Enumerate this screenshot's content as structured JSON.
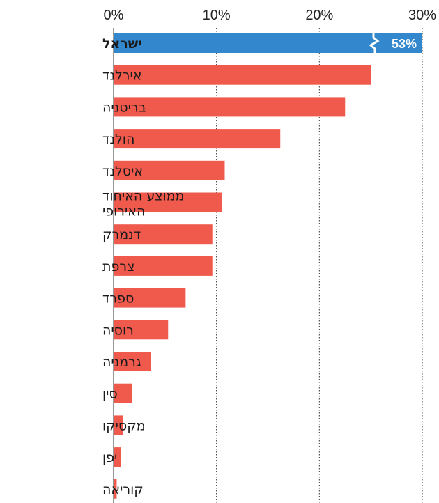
{
  "chart_data": {
    "type": "bar",
    "orientation": "horizontal",
    "categories": [
      "ישראל",
      "אירלנד",
      "בריטניה",
      "הולנד",
      "איסלנד",
      "ממוצע האיחוד האירופי",
      "דנמרק",
      "צרפת",
      "ספרד",
      "רוסיה",
      "גרמניה",
      "סין",
      "מקסיקו",
      "יפן",
      "קוריאה"
    ],
    "values": [
      53,
      25,
      22.5,
      16.2,
      10.8,
      10.5,
      9.6,
      9.6,
      7,
      5.3,
      3.6,
      1.8,
      0.9,
      0.7,
      0.3
    ],
    "value_labels": [
      "53%",
      "",
      "",
      "",
      "",
      "",
      "",
      "",
      "",
      "",
      "",
      "",
      "",
      "",
      ""
    ],
    "highlight_index": 0,
    "axis_break_on": [
      0
    ],
    "xlim": [
      0,
      30
    ],
    "x_ticks": [
      "0%",
      "10%",
      "20%",
      "30%"
    ],
    "tick_values": [
      0,
      10,
      20,
      30
    ],
    "grid": "dotted vertical",
    "colors": {
      "bar": "#f05a4d",
      "highlight": "#3387cc",
      "grid": "#333333"
    }
  }
}
